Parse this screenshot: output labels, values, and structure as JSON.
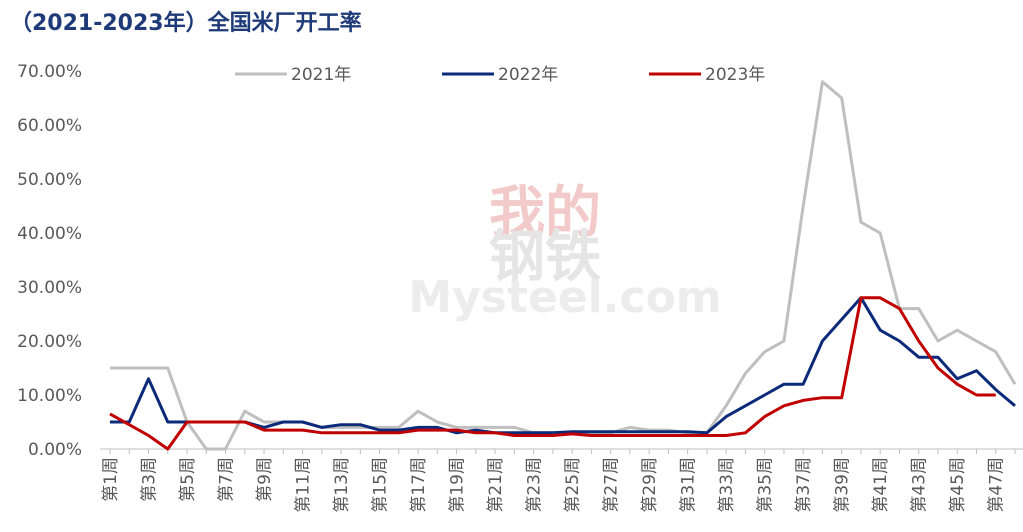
{
  "chart_data": {
    "type": "line",
    "title": "（2021-2023年）全国米厂开工率",
    "watermark": [
      "我的",
      "钢铁",
      "Mysteel.com"
    ],
    "categories": [
      "第1周",
      null,
      "第3周",
      null,
      "第5周",
      null,
      "第7周",
      null,
      "第9周",
      null,
      "第11周",
      null,
      "第13周",
      null,
      "第15周",
      null,
      "第17周",
      null,
      "第19周",
      null,
      "第21周",
      null,
      "第23周",
      null,
      "第25周",
      null,
      "第27周",
      null,
      "第29周",
      null,
      "第31周",
      null,
      "第33周",
      null,
      "第35周",
      null,
      "第37周",
      null,
      "第39周",
      null,
      "第41周",
      null,
      "第43周",
      null,
      "第45周",
      null,
      "第47周",
      null
    ],
    "series": [
      {
        "name": "2021年",
        "color": "#bfbfbf",
        "values": [
          15,
          15,
          15,
          15,
          5,
          0,
          0,
          7,
          5,
          5,
          5,
          4,
          4,
          4,
          4,
          4,
          7,
          5,
          4,
          4,
          4,
          4,
          3,
          3,
          3,
          3,
          3,
          4,
          3.5,
          3.5,
          3,
          3,
          8,
          14,
          18,
          20,
          45,
          68,
          65,
          42,
          40,
          26,
          26,
          20,
          22,
          20,
          18,
          12
        ]
      },
      {
        "name": "2022年",
        "color": "#0c2a7a",
        "values": [
          5,
          5,
          13,
          5,
          5,
          5,
          5,
          5,
          4,
          5,
          5,
          4,
          4.5,
          4.5,
          3.5,
          3.5,
          4,
          4,
          3,
          3.5,
          3,
          3,
          3,
          3,
          3.2,
          3.2,
          3.2,
          3.2,
          3.2,
          3.2,
          3.2,
          3,
          6,
          8,
          10,
          12,
          12,
          20,
          24,
          28,
          22,
          20,
          17,
          17,
          13,
          14.5,
          11,
          8
        ]
      },
      {
        "name": "2023年",
        "color": "#c00000",
        "values": [
          6.5,
          4.5,
          2.5,
          0,
          5,
          5,
          5,
          5,
          3.5,
          3.5,
          3.5,
          3,
          3,
          3,
          3,
          3,
          3.5,
          3.5,
          3.5,
          3,
          3,
          2.5,
          2.5,
          2.5,
          2.8,
          2.5,
          2.5,
          2.5,
          2.5,
          2.5,
          2.5,
          2.5,
          2.5,
          3,
          6,
          8,
          9,
          9.5,
          9.5,
          28,
          28,
          26,
          20,
          15,
          12,
          10,
          10,
          null
        ]
      }
    ],
    "ylim": [
      0,
      70
    ],
    "yticks": [
      {
        "value": 0,
        "label": "0.00%"
      },
      {
        "value": 10,
        "label": "10.00%"
      },
      {
        "value": 20,
        "label": "20.00%"
      },
      {
        "value": 30,
        "label": "30.00%"
      },
      {
        "value": 40,
        "label": "40.00%"
      },
      {
        "value": 50,
        "label": "50.00%"
      },
      {
        "value": 60,
        "label": "60.00%"
      },
      {
        "value": 70,
        "label": "70.00%"
      }
    ],
    "legend": "top"
  }
}
